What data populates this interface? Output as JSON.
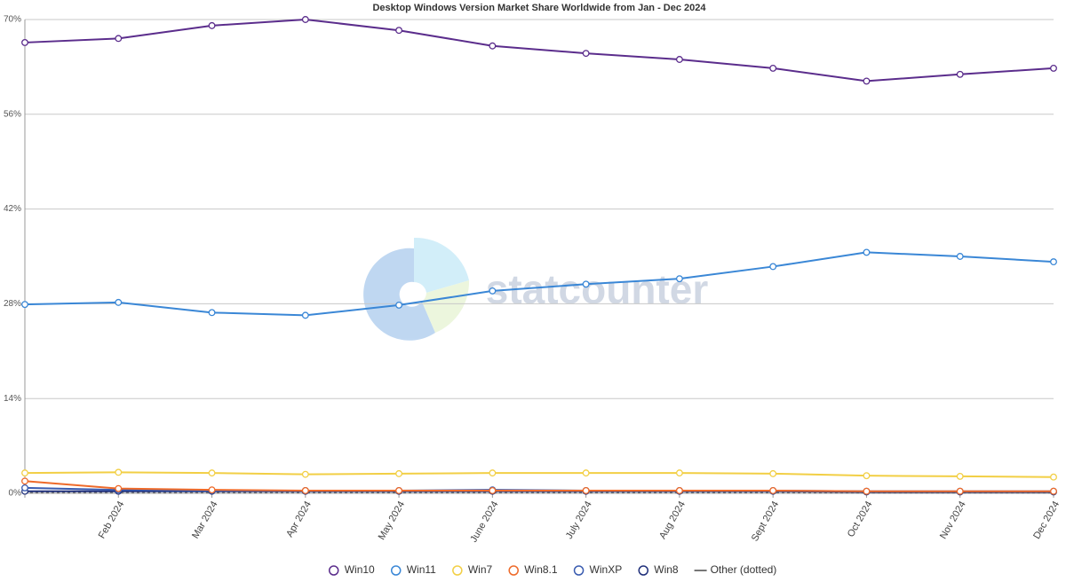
{
  "chart_data": {
    "type": "line",
    "title": "Desktop Windows Version Market Share Worldwide from Jan - Dec 2024",
    "watermark": "statcounter",
    "categories": [
      null,
      "Feb 2024",
      "Mar 2024",
      "Apr 2024",
      "May 2024",
      "June 2024",
      "July 2024",
      "Aug 2024",
      "Sept 2024",
      "Oct 2024",
      "Nov 2024",
      "Dec 2024"
    ],
    "ylim": [
      0,
      70
    ],
    "yticks": [
      {
        "value": 0,
        "label": "0%"
      },
      {
        "value": 14,
        "label": "14%"
      },
      {
        "value": 28,
        "label": "28%"
      },
      {
        "value": 42,
        "label": "42%"
      },
      {
        "value": 56,
        "label": "56%"
      },
      {
        "value": 70,
        "label": "70%"
      }
    ],
    "grid": true,
    "legend": "bottom",
    "series": [
      {
        "name": "Win10",
        "color": "#5b2d8c",
        "values": [
          66.6,
          67.2,
          69.1,
          70.0,
          68.4,
          66.1,
          65.0,
          64.1,
          62.8,
          60.9,
          61.9,
          62.8
        ]
      },
      {
        "name": "Win11",
        "color": "#3a87d6",
        "values": [
          27.9,
          28.2,
          26.7,
          26.3,
          27.8,
          29.9,
          30.9,
          31.7,
          33.5,
          35.6,
          35.0,
          34.2
        ]
      },
      {
        "name": "Win7",
        "color": "#f2cf45",
        "values": [
          3.0,
          3.1,
          3.0,
          2.8,
          2.9,
          3.0,
          3.0,
          3.0,
          2.9,
          2.6,
          2.5,
          2.4
        ]
      },
      {
        "name": "Win8.1",
        "color": "#ee6a2a",
        "values": [
          1.8,
          0.7,
          0.5,
          0.4,
          0.4,
          0.4,
          0.4,
          0.4,
          0.4,
          0.3,
          0.3,
          0.3
        ]
      },
      {
        "name": "WinXP",
        "color": "#3a5cb0",
        "values": [
          0.8,
          0.5,
          0.4,
          0.4,
          0.4,
          0.5,
          0.4,
          0.4,
          0.4,
          0.3,
          0.3,
          0.3
        ]
      },
      {
        "name": "Win8",
        "color": "#1f2f7a",
        "values": [
          0.3,
          0.3,
          0.3,
          0.3,
          0.3,
          0.3,
          0.3,
          0.3,
          0.3,
          0.2,
          0.2,
          0.2
        ]
      },
      {
        "name": "Other (dotted)",
        "color": "#777777",
        "dashed": true,
        "values": [
          0.1,
          0.1,
          0.1,
          0.1,
          0.1,
          0.1,
          0.1,
          0.1,
          0.1,
          0.1,
          0.1,
          0.1
        ]
      }
    ]
  }
}
